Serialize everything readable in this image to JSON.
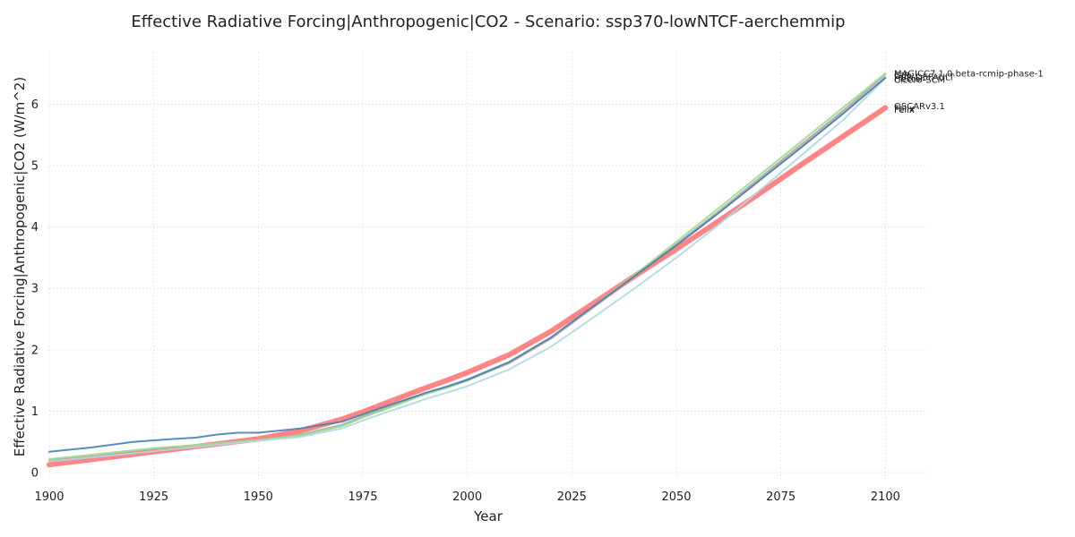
{
  "chart_data": {
    "type": "line",
    "title": "Effective Radiative Forcing|Anthropogenic|CO2 - Scenario: ssp370-lowNTCF-aerchemmip",
    "xlabel": "Year",
    "ylabel": "Effective Radiative Forcing|Anthropogenic|CO2 (W/m^2)",
    "xlim": [
      1900,
      2110
    ],
    "ylim": [
      -0.1,
      6.85
    ],
    "xticks": [
      1900,
      1925,
      1950,
      1975,
      2000,
      2025,
      2050,
      2075,
      2100
    ],
    "yticks": [
      0,
      1,
      2,
      3,
      4,
      5,
      6
    ],
    "grid": true,
    "legend": "none",
    "series": [
      {
        "name": "GIR",
        "color": "#a8a8a8",
        "width": 2,
        "x": [
          1900,
          1925,
          1950,
          1960,
          1970,
          1975,
          1980,
          1985,
          1990,
          1995,
          2000,
          2010,
          2020,
          2030,
          2040,
          2050,
          2060,
          2070,
          2080,
          2090,
          2100
        ],
        "y": [
          0.2,
          0.38,
          0.53,
          0.62,
          0.78,
          0.92,
          1.05,
          1.18,
          1.3,
          1.4,
          1.52,
          1.8,
          2.2,
          2.7,
          3.2,
          3.72,
          4.25,
          4.8,
          5.35,
          5.9,
          6.48
        ]
      },
      {
        "name": "Cicero-SCM",
        "color": "#d4a5a5",
        "width": 2,
        "x": [
          1900,
          1925,
          1950,
          1960,
          1970,
          1975,
          1980,
          1985,
          1990,
          1995,
          2000,
          2010,
          2020,
          2030,
          2040,
          2050,
          2060,
          2070,
          2080,
          2090,
          2100
        ],
        "y": [
          0.19,
          0.36,
          0.52,
          0.6,
          0.76,
          0.9,
          1.03,
          1.16,
          1.28,
          1.38,
          1.5,
          1.78,
          2.18,
          2.68,
          3.18,
          3.7,
          4.23,
          4.77,
          5.32,
          5.87,
          6.43
        ]
      },
      {
        "name": "OSCARv3.1",
        "color": "#c9a0a0",
        "width": 2,
        "x": [
          1900,
          1925,
          1950,
          1960,
          1970,
          1975,
          1980,
          1985,
          1990,
          1995,
          2000,
          2010,
          2020,
          2030,
          2040,
          2050,
          2060,
          2070,
          2080,
          2090,
          2100
        ],
        "y": [
          0.17,
          0.36,
          0.56,
          0.68,
          0.84,
          0.98,
          1.1,
          1.24,
          1.37,
          1.49,
          1.62,
          1.9,
          2.27,
          2.72,
          3.18,
          3.64,
          4.1,
          4.56,
          5.03,
          5.5,
          5.96
        ]
      },
      {
        "name": "Felix",
        "color": "#ff8080",
        "width": 6,
        "x": [
          1900,
          1925,
          1950,
          1960,
          1970,
          1975,
          1980,
          1985,
          1990,
          1995,
          2000,
          2010,
          2020,
          2030,
          2040,
          2050,
          2060,
          2070,
          2080,
          2090,
          2100
        ],
        "y": [
          0.13,
          0.34,
          0.55,
          0.68,
          0.87,
          0.99,
          1.12,
          1.25,
          1.38,
          1.5,
          1.63,
          1.92,
          2.3,
          2.75,
          3.2,
          3.64,
          4.09,
          4.55,
          5.02,
          5.48,
          5.94
        ]
      },
      {
        "name": "MAGICC7.1.0.beta-rcmip-phase-1",
        "color": "#98df8a",
        "width": 2,
        "x": [
          1900,
          1925,
          1950,
          1960,
          1970,
          1975,
          1980,
          1985,
          1990,
          1995,
          2000,
          2010,
          2020,
          2030,
          2040,
          2050,
          2060,
          2070,
          2080,
          2090,
          2100
        ],
        "y": [
          0.22,
          0.4,
          0.53,
          0.61,
          0.76,
          0.9,
          1.02,
          1.15,
          1.28,
          1.38,
          1.5,
          1.8,
          2.2,
          2.7,
          3.22,
          3.76,
          4.3,
          4.85,
          5.4,
          5.95,
          6.5
        ]
      },
      {
        "name": "Hector",
        "color": "#add8e6",
        "width": 2,
        "x": [
          1900,
          1925,
          1950,
          1960,
          1970,
          1975,
          1980,
          1985,
          1990,
          1995,
          2000,
          2010,
          2020,
          2030,
          2040,
          2050,
          2060,
          2070,
          2080,
          2090,
          2100
        ],
        "y": [
          0.18,
          0.35,
          0.52,
          0.58,
          0.72,
          0.85,
          0.97,
          1.08,
          1.2,
          1.3,
          1.41,
          1.68,
          2.05,
          2.52,
          3.0,
          3.5,
          4.03,
          4.6,
          5.17,
          5.75,
          6.42
        ]
      },
      {
        "name": "FaIR-DEFAULT",
        "color": "#4682b4",
        "width": 2,
        "x": [
          1900,
          1910,
          1920,
          1930,
          1935,
          1940,
          1945,
          1950,
          1960,
          1970,
          1975,
          1980,
          1985,
          1990,
          1995,
          2000,
          2010,
          2020,
          2030,
          2040,
          2050,
          2060,
          2070,
          2080,
          2090,
          2100
        ],
        "y": [
          0.34,
          0.41,
          0.5,
          0.55,
          0.57,
          0.62,
          0.65,
          0.65,
          0.72,
          0.83,
          0.95,
          1.07,
          1.18,
          1.3,
          1.4,
          1.51,
          1.8,
          2.2,
          2.7,
          3.2,
          3.7,
          4.22,
          4.76,
          5.3,
          5.85,
          6.43
        ]
      }
    ],
    "end_labels": [
      {
        "text": "MAGICC7.1.0.beta-rcmip-phase-1",
        "y": 6.5
      },
      {
        "text": "GIR",
        "y": 6.47
      },
      {
        "text": "FaIR-DEFAULT",
        "y": 6.44
      },
      {
        "text": "Cicero-SCM",
        "y": 6.4
      },
      {
        "text": "Hector",
        "y": 6.41
      },
      {
        "text": "OSCARv3.1",
        "y": 5.97
      },
      {
        "text": "Felix",
        "y": 5.91
      },
      {
        "text": "Felix",
        "y": 5.93
      }
    ]
  }
}
